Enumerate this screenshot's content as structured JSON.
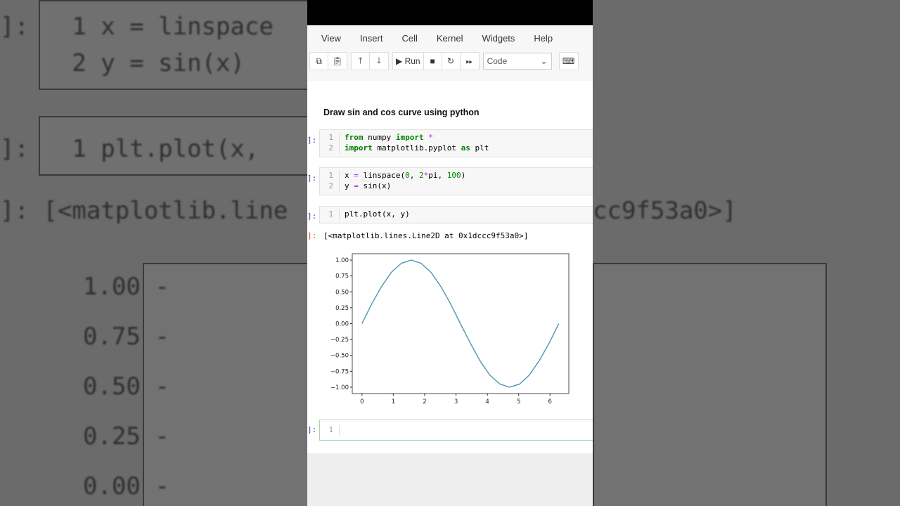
{
  "menu": [
    "View",
    "Insert",
    "Cell",
    "Kernel",
    "Widgets",
    "Help"
  ],
  "toolbar": {
    "run_label": "Run",
    "cell_type": "Code"
  },
  "markdown": "Draw sin and cos curve using python",
  "cells": [
    {
      "prompt": "]:",
      "lines": [
        "from numpy import *",
        "import matplotlib.pyplot as plt"
      ]
    },
    {
      "prompt": "]:",
      "lines": [
        "x = linspace(0, 2*pi, 100)",
        "y = sin(x)"
      ]
    },
    {
      "prompt": "]:",
      "lines": [
        "plt.plot(x, y)"
      ]
    },
    {
      "prompt": "]:",
      "lines": [
        ""
      ]
    }
  ],
  "output": {
    "prompt": "]:",
    "text": "[<matplotlib.lines.Line2D at 0x1dccc9f53a0>]"
  },
  "chart_data": {
    "type": "line",
    "xlim": [
      -0.31,
      6.6
    ],
    "ylim": [
      -1.1,
      1.1
    ],
    "xticks": [
      "0",
      "1",
      "2",
      "3",
      "4",
      "5",
      "6"
    ],
    "yticks": [
      "1.00",
      "0.75",
      "0.50",
      "0.25",
      "0.00",
      "−0.25",
      "−0.50",
      "−0.75",
      "−1.00"
    ],
    "color": "#5a9ab5",
    "grid": false,
    "x": [
      0,
      0.31,
      0.63,
      0.94,
      1.26,
      1.57,
      1.88,
      2.2,
      2.51,
      2.83,
      3.14,
      3.46,
      3.77,
      4.08,
      4.4,
      4.71,
      5.03,
      5.34,
      5.65,
      5.97,
      6.28
    ],
    "y": [
      0,
      0.309,
      0.588,
      0.809,
      0.951,
      1,
      0.951,
      0.809,
      0.588,
      0.309,
      0,
      -0.309,
      -0.588,
      -0.809,
      -0.951,
      -1,
      -0.951,
      -0.809,
      -0.588,
      -0.309,
      0
    ]
  }
}
